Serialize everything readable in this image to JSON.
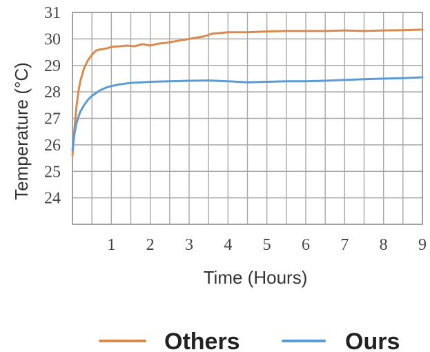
{
  "chart_data": {
    "type": "line",
    "xlabel": "Time (Hours)",
    "ylabel": "Temperature (°C)",
    "xlim": [
      0,
      9
    ],
    "ylim": [
      23,
      31
    ],
    "x_ticks": [
      1,
      2,
      3,
      4,
      5,
      6,
      7,
      8,
      9
    ],
    "y_ticks": [
      24,
      25,
      26,
      27,
      28,
      29,
      30,
      31
    ],
    "grid": true,
    "legend_position": "bottom",
    "series": [
      {
        "name": "Others",
        "color": "#D98A4E",
        "x": [
          0,
          0.05,
          0.1,
          0.15,
          0.2,
          0.3,
          0.4,
          0.5,
          0.6,
          0.7,
          0.8,
          0.9,
          1.0,
          1.2,
          1.4,
          1.6,
          1.8,
          2.0,
          2.2,
          2.4,
          2.6,
          2.8,
          3.0,
          3.2,
          3.4,
          3.6,
          3.8,
          4.0,
          4.5,
          5.0,
          5.5,
          6.0,
          6.5,
          7.0,
          7.5,
          8.0,
          8.5,
          9.0
        ],
        "y": [
          25.6,
          26.6,
          27.4,
          28.0,
          28.4,
          28.9,
          29.2,
          29.4,
          29.55,
          29.6,
          29.62,
          29.65,
          29.7,
          29.72,
          29.75,
          29.72,
          29.8,
          29.75,
          29.82,
          29.85,
          29.9,
          29.95,
          30.0,
          30.05,
          30.1,
          30.2,
          30.22,
          30.25,
          30.25,
          30.28,
          30.3,
          30.3,
          30.3,
          30.32,
          30.3,
          30.32,
          30.33,
          30.35
        ]
      },
      {
        "name": "Ours",
        "color": "#5B9BD5",
        "x": [
          0,
          0.05,
          0.1,
          0.15,
          0.2,
          0.3,
          0.4,
          0.5,
          0.6,
          0.7,
          0.8,
          0.9,
          1.0,
          1.2,
          1.4,
          1.6,
          1.8,
          2.0,
          2.5,
          3.0,
          3.5,
          4.0,
          4.5,
          5.0,
          5.5,
          6.0,
          6.5,
          7.0,
          7.5,
          8.0,
          8.5,
          9.0
        ],
        "y": [
          25.8,
          26.4,
          26.8,
          27.05,
          27.25,
          27.5,
          27.7,
          27.85,
          27.95,
          28.05,
          28.12,
          28.18,
          28.22,
          28.28,
          28.32,
          28.35,
          28.36,
          28.38,
          28.4,
          28.42,
          28.43,
          28.4,
          28.36,
          28.38,
          28.4,
          28.4,
          28.42,
          28.45,
          28.48,
          28.5,
          28.52,
          28.55
        ]
      }
    ]
  }
}
